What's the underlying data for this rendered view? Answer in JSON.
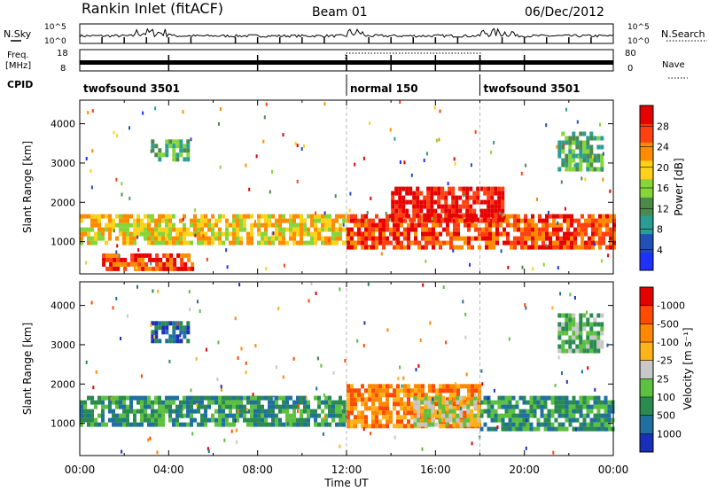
{
  "header": {
    "station": "Rankin Inlet (fitACF)",
    "beam": "Beam 01",
    "date": "06/Dec/2012"
  },
  "nsky": {
    "label": "N.Sky",
    "ticks": [
      "10^5",
      "10^0"
    ],
    "right_label": "N.Search",
    "right_ticks": [
      "10^5",
      "10^0"
    ]
  },
  "freq": {
    "label_line1": "Freq.",
    "label_line2": "[MHz]",
    "ticks": [
      "18",
      "8"
    ],
    "right_label": "Nave",
    "right_ticks": [
      "80",
      "0"
    ]
  },
  "cpid": {
    "label": "CPID",
    "segments": [
      {
        "name": "twofsound 3501",
        "start": 0,
        "end": 12
      },
      {
        "name": "normal 150",
        "start": 12,
        "end": 18
      },
      {
        "name": "twofsound 3501",
        "start": 18,
        "end": 24
      }
    ]
  },
  "x_axis": {
    "label": "Time UT",
    "tick_labels": [
      "00:00",
      "04:00",
      "08:00",
      "12:00",
      "16:00",
      "20:00",
      "00:00"
    ],
    "range_hours": [
      0,
      24
    ]
  },
  "chart_data": [
    {
      "type": "heatmap",
      "ylabel": "Slant Range [km]",
      "ylim": [
        180,
        4600
      ],
      "yticks": [
        1000,
        2000,
        3000,
        4000
      ],
      "colorbar": {
        "label": "Power [dB]",
        "tick_labels": [
          "4",
          "8",
          "12",
          "16",
          "20",
          "24",
          "28"
        ],
        "colors": [
          "#2030ff",
          "#2050b8",
          "#2a9e92",
          "#4c8a4c",
          "#86d63a",
          "#ffd21a",
          "#ff8c00",
          "#ff4010",
          "#e60000"
        ]
      },
      "regions": [
        {
          "t": [
            0.0,
            12.0
          ],
          "r": [
            1000,
            1700
          ],
          "level": 5
        },
        {
          "t": [
            1.0,
            5.0
          ],
          "r": [
            250,
            700
          ],
          "level": 7
        },
        {
          "t": [
            3.2,
            4.8
          ],
          "r": [
            3100,
            3600
          ],
          "level": 3
        },
        {
          "t": [
            12.0,
            24.0
          ],
          "r": [
            800,
            1700
          ],
          "level": 7
        },
        {
          "t": [
            14.0,
            19.0
          ],
          "r": [
            1500,
            2400
          ],
          "level": 8
        },
        {
          "t": [
            21.5,
            23.5
          ],
          "r": [
            2800,
            3800
          ],
          "level": 3
        }
      ]
    },
    {
      "type": "heatmap",
      "ylabel": "Slant Range [km]",
      "ylim": [
        180,
        4600
      ],
      "yticks": [
        1000,
        2000,
        3000,
        4000
      ],
      "colorbar": {
        "label": "Velocity [m s⁻¹]",
        "tick_labels": [
          "1000",
          "500",
          "100",
          "25",
          "-25",
          "-100",
          "-500",
          "-1000"
        ],
        "colors": [
          "#1a2fb8",
          "#1f70a0",
          "#2a8a50",
          "#5cc040",
          "#c8c8c8",
          "#ffb21a",
          "#ff8800",
          "#ff4a00",
          "#e60000"
        ]
      },
      "regions": [
        {
          "t": [
            0.0,
            12.0
          ],
          "r": [
            1000,
            1700
          ],
          "level": 2
        },
        {
          "t": [
            3.2,
            4.8
          ],
          "r": [
            3100,
            3600
          ],
          "level": 1
        },
        {
          "t": [
            12.0,
            18.0
          ],
          "r": [
            900,
            2000
          ],
          "level": 6
        },
        {
          "t": [
            15.0,
            18.0
          ],
          "r": [
            1000,
            1700
          ],
          "level": 4
        },
        {
          "t": [
            18.0,
            24.0
          ],
          "r": [
            900,
            1700
          ],
          "level": 2
        },
        {
          "t": [
            21.5,
            23.5
          ],
          "r": [
            2800,
            3800
          ],
          "level": 3
        }
      ]
    }
  ]
}
